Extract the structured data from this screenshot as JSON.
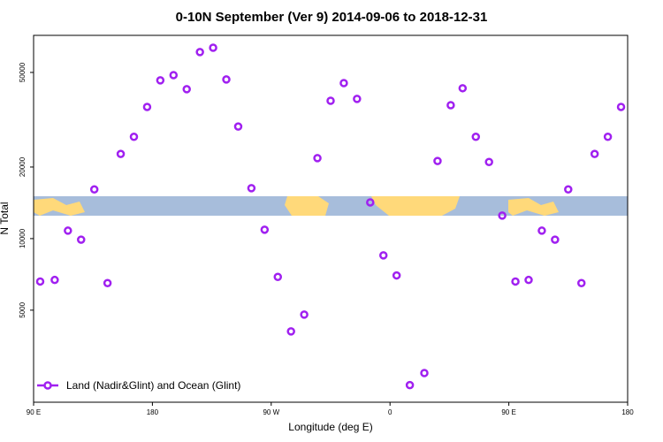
{
  "chart_data": {
    "type": "scatter",
    "title": "0-10N September (Ver 9)   2014-09-06 to 2018-12-31",
    "x_label": "Longitude (deg E)",
    "y_label": "N Total",
    "log_y": true,
    "legend_position": "bottom-left",
    "xlim": [
      90,
      540
    ],
    "ylim": [
      2050,
      71600
    ],
    "xticks": [
      {
        "value": 90,
        "label": "90 E"
      },
      {
        "value": 180,
        "label": "180"
      },
      {
        "value": 270,
        "label": "90 W"
      },
      {
        "value": 360,
        "label": "0"
      },
      {
        "value": 450,
        "label": "90 E"
      },
      {
        "value": 540,
        "label": "180"
      }
    ],
    "yticks": [
      5000,
      10000,
      20000,
      50000
    ],
    "series": [
      {
        "name": "Land (Nadir&Glint) and Ocean (Glint)",
        "color": "#a020f0",
        "x": [
          95,
          106,
          116,
          126,
          136,
          146,
          156,
          166,
          176,
          186,
          196,
          206,
          216,
          226,
          236,
          245,
          255,
          265,
          275,
          285,
          295,
          305,
          315,
          325,
          335,
          345,
          355,
          365,
          375,
          386,
          396,
          406,
          415,
          425,
          435,
          445,
          455,
          465,
          475,
          485,
          495,
          505,
          515,
          525,
          535
        ],
        "values": [
          6600,
          6700,
          10800,
          9900,
          16100,
          6500,
          22700,
          26800,
          35800,
          46300,
          48700,
          42500,
          60900,
          63500,
          46700,
          29600,
          16300,
          10900,
          6900,
          4070,
          4790,
          21800,
          38000,
          45100,
          38700,
          14200,
          8500,
          7000,
          2420,
          2720,
          21200,
          36400,
          42900,
          26800,
          21000,
          12500,
          6600,
          6700,
          10800,
          9900,
          16100,
          6500,
          22700,
          26800,
          35800
        ]
      }
    ]
  }
}
